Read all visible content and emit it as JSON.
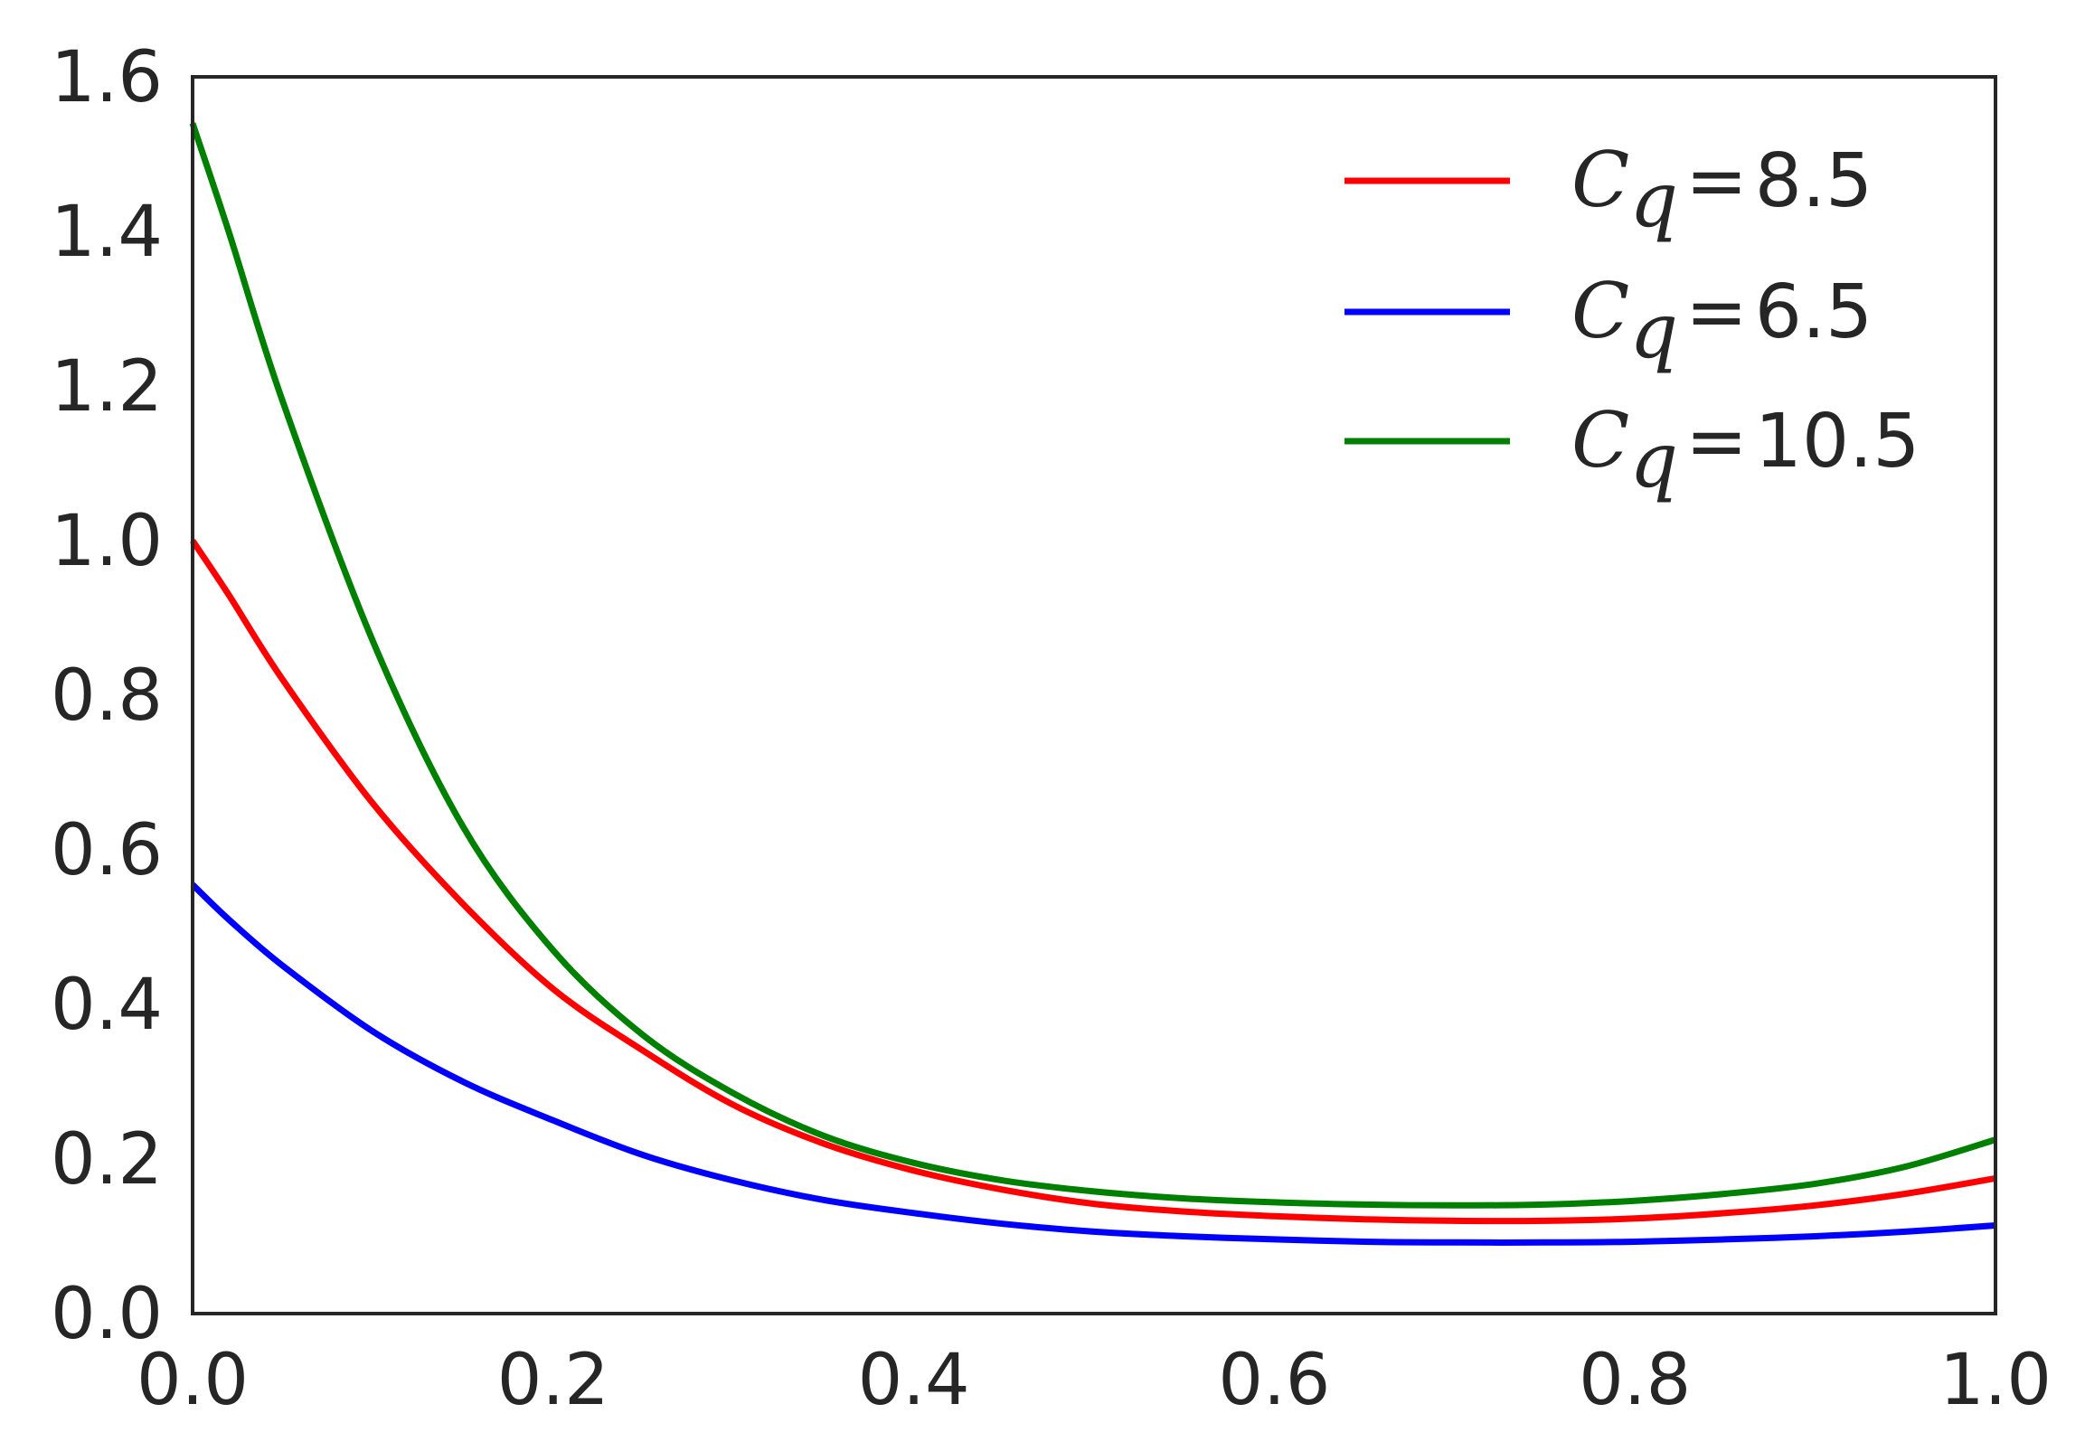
{
  "chart_data": {
    "type": "line",
    "title": "",
    "xlabel": "",
    "ylabel": "",
    "xlim": [
      0.0,
      1.0
    ],
    "ylim": [
      0.0,
      1.6
    ],
    "xticks": [
      "0.0",
      "0.2",
      "0.4",
      "0.6",
      "0.8",
      "1.0"
    ],
    "yticks": [
      "0.0",
      "0.2",
      "0.4",
      "0.6",
      "0.8",
      "1.0",
      "1.2",
      "1.4",
      "1.6"
    ],
    "grid": false,
    "legend_position": "top-right",
    "x": [
      0.0,
      0.02,
      0.05,
      0.1,
      0.15,
      0.2,
      0.25,
      0.3,
      0.35,
      0.4,
      0.45,
      0.5,
      0.55,
      0.6,
      0.65,
      0.7,
      0.75,
      0.8,
      0.85,
      0.9,
      0.95,
      1.0
    ],
    "series": [
      {
        "symbol": "C",
        "subscript": "q",
        "value_text": "8.5",
        "color": "#ff0000",
        "values": [
          1.0,
          0.93,
          0.82,
          0.66,
          0.53,
          0.42,
          0.34,
          0.27,
          0.22,
          0.185,
          0.16,
          0.142,
          0.132,
          0.126,
          0.122,
          0.12,
          0.12,
          0.123,
          0.13,
          0.14,
          0.155,
          0.175
        ]
      },
      {
        "symbol": "C",
        "subscript": "q",
        "value_text": "6.5",
        "color": "#0000ff",
        "values": [
          0.555,
          0.51,
          0.45,
          0.365,
          0.3,
          0.25,
          0.205,
          0.172,
          0.147,
          0.13,
          0.116,
          0.106,
          0.1,
          0.096,
          0.093,
          0.092,
          0.092,
          0.093,
          0.096,
          0.1,
          0.106,
          0.114
        ]
      },
      {
        "symbol": "C",
        "subscript": "q",
        "value_text": "10.5",
        "color": "#008000",
        "values": [
          1.54,
          1.4,
          1.18,
          0.87,
          0.63,
          0.47,
          0.36,
          0.285,
          0.23,
          0.195,
          0.172,
          0.158,
          0.149,
          0.144,
          0.141,
          0.14,
          0.141,
          0.146,
          0.155,
          0.168,
          0.19,
          0.225
        ]
      }
    ]
  }
}
